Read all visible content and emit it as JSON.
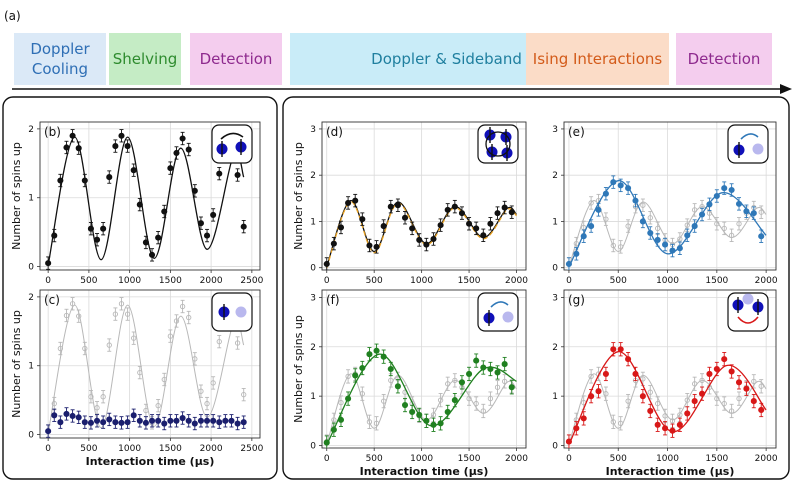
{
  "figure_label": "(a)",
  "sequence": [
    {
      "label": "Doppler\nCooling",
      "fill": "#dbe9f7",
      "color": "#2f6fb5"
    },
    {
      "label": "Shelving",
      "fill": "#c5ecc5",
      "color": "#2e8b2e"
    },
    {
      "label": "Detection",
      "fill": "#f4cdee",
      "color": "#8e2a8e"
    },
    {
      "label": "Doppler & Sideband Cooling",
      "fill": "#c9ecf8",
      "color": "#1f7f9f"
    },
    {
      "label": "Ising Interactions",
      "fill": "#fbdcc7",
      "color": "#d35b1a"
    },
    {
      "label": "Detection",
      "fill": "#f4cdee",
      "color": "#8e2a8e"
    }
  ],
  "colors": {
    "black": "#111111",
    "navy": "#1b1f6e",
    "orange": "#e8a020",
    "blue": "#2f78b8",
    "green": "#208020",
    "red": "#d81818",
    "ghost": "#b8b8b8",
    "lightspin": "#b9b8ee",
    "spin": "#1010b8"
  },
  "xlabel": "Interaction time (μs)",
  "ylabel": "Number of spins up",
  "chart_data": [
    {
      "panel": "(b)",
      "type": "scatter",
      "icon": "pair-exchange-icon",
      "xlim": [
        -100,
        2600
      ],
      "ylim": [
        -0.05,
        2.1
      ],
      "xticks": [
        0,
        500,
        1000,
        1500,
        2000,
        2500
      ],
      "yticks": [
        0,
        1,
        2
      ],
      "series": [
        {
          "color": "black",
          "fit": true,
          "x": [
            0,
            75,
            150,
            225,
            300,
            375,
            450,
            525,
            600,
            675,
            750,
            825,
            900,
            975,
            1050,
            1125,
            1200,
            1275,
            1350,
            1425,
            1500,
            1575,
            1650,
            1725,
            1800,
            1875,
            1950,
            2025,
            2100,
            2175,
            2250,
            2325,
            2400
          ],
          "y": [
            0.05,
            0.45,
            1.25,
            1.73,
            1.9,
            1.72,
            1.25,
            0.55,
            0.39,
            0.55,
            1.3,
            1.75,
            1.9,
            1.75,
            1.4,
            0.9,
            0.35,
            0.17,
            0.42,
            0.8,
            1.43,
            1.65,
            1.86,
            1.7,
            1.1,
            0.63,
            0.45,
            0.75,
            1.35,
            1.63,
            1.62,
            1.33,
            0.58
          ],
          "fit_points": [
            [
              0,
              0.02
            ],
            [
              325,
              1.88
            ],
            [
              650,
              0.1
            ],
            [
              975,
              1.88
            ],
            [
              1300,
              0.12
            ],
            [
              1625,
              1.72
            ],
            [
              1950,
              0.25
            ],
            [
              2275,
              1.62
            ],
            [
              2400,
              1.3
            ]
          ]
        }
      ]
    },
    {
      "panel": "(c)",
      "type": "scatter",
      "icon": "single-spin-icon",
      "xlim": [
        -100,
        2600
      ],
      "ylim": [
        -0.05,
        2.1
      ],
      "xticks": [
        0,
        500,
        1000,
        1500,
        2000,
        2500
      ],
      "yticks": [
        0,
        1,
        2
      ],
      "series": [
        {
          "color": "navy",
          "fit": false,
          "x": [
            0,
            75,
            150,
            225,
            300,
            375,
            450,
            525,
            600,
            675,
            750,
            825,
            900,
            975,
            1050,
            1125,
            1200,
            1275,
            1350,
            1425,
            1500,
            1575,
            1650,
            1725,
            1800,
            1875,
            1950,
            2025,
            2100,
            2175,
            2250,
            2325,
            2400
          ],
          "y": [
            0.05,
            0.28,
            0.18,
            0.3,
            0.27,
            0.25,
            0.18,
            0.17,
            0.2,
            0.18,
            0.22,
            0.18,
            0.17,
            0.18,
            0.28,
            0.2,
            0.17,
            0.2,
            0.2,
            0.16,
            0.2,
            0.2,
            0.24,
            0.2,
            0.16,
            0.2,
            0.2,
            0.2,
            0.18,
            0.2,
            0.2,
            0.16,
            0.18
          ]
        },
        {
          "color": "ghost",
          "fit": true,
          "ref": 0
        }
      ]
    },
    {
      "panel": "(d)",
      "type": "scatter",
      "icon": "ring-exchange-icon",
      "xlim": [
        -50,
        2100
      ],
      "ylim": [
        -0.05,
        3.15
      ],
      "xticks": [
        0,
        500,
        1000,
        1500,
        2000
      ],
      "yticks": [
        0,
        1,
        2,
        3
      ],
      "series": [
        {
          "color": "black",
          "fit": true,
          "x": [
            0,
            75,
            150,
            225,
            300,
            375,
            450,
            525,
            600,
            675,
            750,
            825,
            900,
            975,
            1050,
            1125,
            1200,
            1275,
            1350,
            1425,
            1500,
            1575,
            1650,
            1725,
            1800,
            1875,
            1950
          ],
          "y": [
            0.08,
            0.52,
            0.87,
            1.4,
            1.45,
            1.05,
            0.48,
            0.45,
            0.9,
            1.32,
            1.35,
            1.08,
            0.85,
            0.6,
            0.5,
            0.62,
            0.92,
            1.25,
            1.32,
            1.18,
            0.95,
            0.85,
            0.7,
            0.95,
            1.18,
            1.3,
            1.2
          ],
          "fit_points": [
            [
              0,
              0.02
            ],
            [
              250,
              1.45
            ],
            [
              500,
              0.35
            ],
            [
              750,
              1.42
            ],
            [
              1050,
              0.52
            ],
            [
              1350,
              1.32
            ],
            [
              1650,
              0.65
            ],
            [
              1900,
              1.28
            ],
            [
              2000,
              1.15
            ]
          ]
        }
      ]
    },
    {
      "panel": "(e)",
      "type": "scatter",
      "icon": "spin-hop-icon",
      "xlim": [
        -50,
        2100
      ],
      "ylim": [
        -0.05,
        3.15
      ],
      "xticks": [
        0,
        500,
        1000,
        1500,
        2000
      ],
      "yticks": [
        0,
        1,
        2,
        3
      ],
      "series": [
        {
          "color": "blue",
          "fit": true,
          "x": [
            0,
            75,
            150,
            225,
            300,
            375,
            450,
            525,
            600,
            675,
            750,
            825,
            900,
            975,
            1050,
            1125,
            1200,
            1275,
            1350,
            1425,
            1500,
            1575,
            1650,
            1725,
            1800,
            1875,
            1950
          ],
          "y": [
            0.08,
            0.3,
            0.68,
            0.9,
            1.25,
            1.6,
            1.85,
            1.78,
            1.72,
            1.45,
            1.0,
            0.75,
            0.6,
            0.5,
            0.37,
            0.42,
            0.7,
            0.9,
            1.15,
            1.37,
            1.55,
            1.72,
            1.68,
            1.38,
            1.22,
            1.18,
            0.68
          ],
          "fit_points": [
            [
              0,
              0.02
            ],
            [
              500,
              1.88
            ],
            [
              1000,
              0.3
            ],
            [
              1550,
              1.62
            ],
            [
              2000,
              0.7
            ]
          ]
        },
        {
          "color": "ghost",
          "fit": true,
          "ref": 2
        }
      ]
    },
    {
      "panel": "(f)",
      "type": "scatter",
      "icon": "spin-hop-icon",
      "xlim": [
        -50,
        2100
      ],
      "ylim": [
        -0.05,
        3.15
      ],
      "xticks": [
        0,
        500,
        1000,
        1500,
        2000
      ],
      "yticks": [
        0,
        1,
        2,
        3
      ],
      "series": [
        {
          "color": "green",
          "fit": true,
          "x": [
            0,
            75,
            150,
            225,
            300,
            375,
            450,
            525,
            600,
            675,
            750,
            825,
            900,
            975,
            1050,
            1125,
            1200,
            1275,
            1350,
            1425,
            1500,
            1575,
            1650,
            1725,
            1800,
            1875,
            1950
          ],
          "y": [
            0.06,
            0.32,
            0.52,
            0.95,
            1.42,
            1.57,
            1.85,
            1.92,
            1.8,
            1.55,
            1.2,
            0.82,
            0.68,
            0.62,
            0.5,
            0.42,
            0.45,
            0.68,
            0.92,
            1.28,
            1.45,
            1.72,
            1.58,
            1.55,
            1.48,
            1.65,
            1.18
          ],
          "fit_points": [
            [
              0,
              0.02
            ],
            [
              550,
              1.85
            ],
            [
              1100,
              0.4
            ],
            [
              1650,
              1.55
            ],
            [
              2000,
              1.3
            ]
          ]
        },
        {
          "color": "ghost",
          "fit": true,
          "ref": 2
        }
      ]
    },
    {
      "panel": "(g)",
      "type": "scatter",
      "icon": "pair-swap-icon",
      "xlim": [
        -50,
        2100
      ],
      "ylim": [
        -0.05,
        3.15
      ],
      "xticks": [
        0,
        500,
        1000,
        1500,
        2000
      ],
      "yticks": [
        0,
        1,
        2,
        3
      ],
      "series": [
        {
          "color": "red",
          "fit": true,
          "x": [
            0,
            75,
            150,
            225,
            300,
            375,
            450,
            525,
            600,
            675,
            750,
            825,
            900,
            975,
            1050,
            1125,
            1200,
            1275,
            1350,
            1425,
            1500,
            1575,
            1650,
            1725,
            1800,
            1875,
            1950
          ],
          "y": [
            0.08,
            0.35,
            0.55,
            1.0,
            1.1,
            1.45,
            1.95,
            1.95,
            1.75,
            1.45,
            1.0,
            0.7,
            0.42,
            0.35,
            0.3,
            0.42,
            0.65,
            0.9,
            1.05,
            1.45,
            1.55,
            1.75,
            1.5,
            1.28,
            1.15,
            0.9,
            0.72
          ],
          "fit_points": [
            [
              0,
              0.02
            ],
            [
              500,
              1.9
            ],
            [
              1050,
              0.28
            ],
            [
              1600,
              1.62
            ],
            [
              2000,
              0.72
            ]
          ]
        },
        {
          "color": "ghost",
          "fit": true,
          "ref": 2
        }
      ]
    }
  ]
}
